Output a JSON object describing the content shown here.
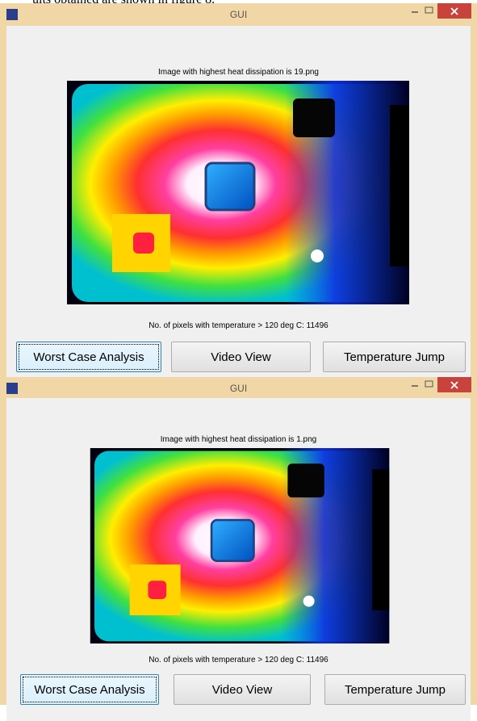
{
  "page_text": "ults obtained are shown in figure 8.",
  "windows": [
    {
      "title": "GUI",
      "heading": "Image with highest heat dissipation is 19.png",
      "status": "No. of pixels with temperature > 120 deg C: 11496",
      "buttons": [
        "Worst Case Analysis",
        "Video View",
        "Temperature Jump"
      ]
    },
    {
      "title": "GUI",
      "heading": "Image with highest heat dissipation is 1.png",
      "status": "No. of pixels with temperature > 120 deg C: 11496",
      "buttons": [
        "Worst Case Analysis",
        "Video View",
        "Temperature Jump"
      ]
    }
  ]
}
